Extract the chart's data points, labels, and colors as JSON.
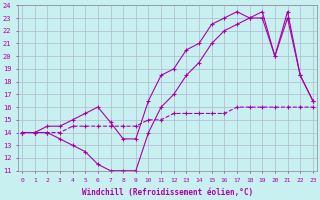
{
  "xlabel": "Windchill (Refroidissement éolien,°C)",
  "bg_color": "#c8f0f0",
  "line_color": "#aa00aa",
  "grid_color": "#b0b8cc",
  "xmin": 0,
  "xmax": 23,
  "ymin": 11,
  "ymax": 24,
  "line1_x": [
    0,
    1,
    2,
    3,
    4,
    5,
    6,
    7,
    8,
    9,
    10,
    11,
    12,
    13,
    14,
    15,
    16,
    17,
    18,
    19,
    20,
    21,
    22,
    23
  ],
  "line1_y": [
    14,
    14,
    14,
    14,
    14.5,
    14.5,
    14.5,
    14.5,
    14.5,
    14.5,
    15,
    15,
    15.5,
    15.5,
    15.5,
    15.5,
    15.5,
    16,
    16,
    16,
    16,
    16,
    16,
    16
  ],
  "line2_x": [
    0,
    1,
    2,
    3,
    4,
    5,
    6,
    7,
    8,
    9,
    10,
    11,
    12,
    13,
    14,
    15,
    16,
    17,
    18,
    19,
    20,
    21,
    22,
    23
  ],
  "line2_y": [
    14,
    14,
    14,
    13.5,
    13,
    12.5,
    11.5,
    11,
    11,
    11,
    14,
    16,
    17,
    18.5,
    19.5,
    21,
    22,
    22.5,
    23,
    23,
    20,
    23.5,
    18.5,
    16.5
  ],
  "line3_x": [
    0,
    1,
    2,
    3,
    4,
    5,
    6,
    7,
    8,
    9,
    10,
    11,
    12,
    13,
    14,
    15,
    16,
    17,
    18,
    19,
    20,
    21,
    22,
    23
  ],
  "line3_y": [
    14,
    14,
    14.5,
    14.5,
    15,
    15.5,
    16,
    14.8,
    13.5,
    13.5,
    16.5,
    18.5,
    19,
    20.5,
    21,
    22.5,
    23,
    23.5,
    23,
    23.5,
    20,
    23,
    18.5,
    16.5
  ]
}
